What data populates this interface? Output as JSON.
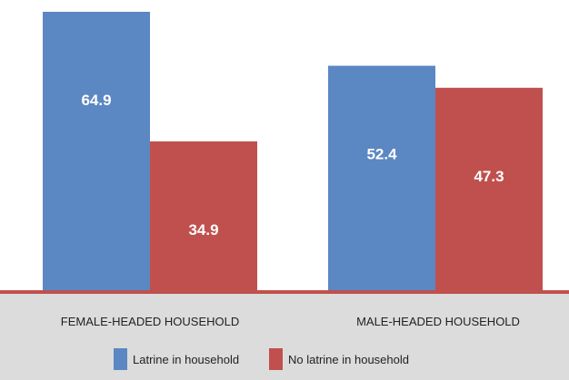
{
  "chart_data": {
    "type": "bar",
    "categories": [
      "FEMALE-HEADED HOUSEHOLD",
      "MALE-HEADED HOUSEHOLD"
    ],
    "series": [
      {
        "name": "Latrine in household",
        "values": [
          64.9,
          52.4
        ],
        "color": "#5b87c2"
      },
      {
        "name": "No latrine in household",
        "values": [
          34.9,
          47.3
        ],
        "color": "#c0504d"
      }
    ],
    "ylim": [
      0,
      64.9
    ],
    "grid": false,
    "legend_position": "bottom-center",
    "axis_color": "#c0504d",
    "panel_color": "#dcdcdc"
  }
}
